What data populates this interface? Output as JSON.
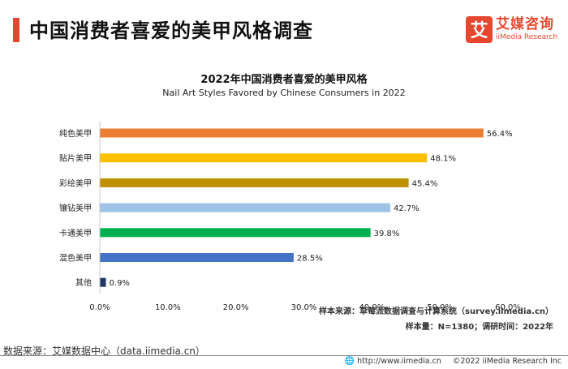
{
  "header": {
    "title": "中国消费者喜爱的美甲风格调查"
  },
  "logo": {
    "badge": "艾",
    "cn": "艾媒咨询",
    "en": "iiMedia Research"
  },
  "chart_data": {
    "type": "bar",
    "orientation": "horizontal",
    "title": "2022年中国消费者喜爱的美甲风格",
    "subtitle": "Nail Art Styles Favored by Chinese Consumers in 2022",
    "categories": [
      "纯色美甲",
      "贴片美甲",
      "彩绘美甲",
      "镶钻美甲",
      "卡通美甲",
      "混色美甲",
      "其他"
    ],
    "values": [
      56.4,
      48.1,
      45.4,
      42.7,
      39.8,
      28.5,
      0.9
    ],
    "value_labels": [
      "56.4%",
      "48.1%",
      "45.4%",
      "42.7%",
      "39.8%",
      "28.5%",
      "0.9%"
    ],
    "colors": [
      "#ed7d31",
      "#ffc000",
      "#bf9000",
      "#9dc3e6",
      "#00b050",
      "#4472c4",
      "#1f3864"
    ],
    "xlim": [
      0,
      60
    ],
    "xticks": [
      "0.0%",
      "10.0%",
      "20.0%",
      "30.0%",
      "40.0%",
      "50.0%",
      "60.0%"
    ],
    "grid": false,
    "legend": "none"
  },
  "notes": {
    "source_tool": "样本来源：草莓派数据调查与计算系统（survey.iimedia.cn）",
    "sample": "样本量：N=1380；调研时间：2022年"
  },
  "footer": {
    "source": "数据来源：艾媒数据中心（data.iimedia.cn）",
    "url": "http://www.iimedia.cn",
    "copyright": "©2022  iiMedia Research  Inc"
  }
}
